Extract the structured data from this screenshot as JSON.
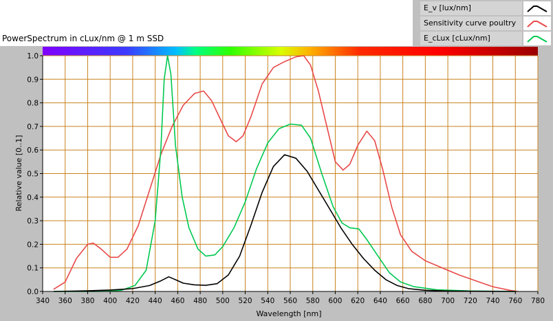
{
  "chart_data": {
    "type": "line",
    "title": "PowerSpectrum in cLux/nm @ 1 m SSD",
    "xlabel": "Wavelength [nm]",
    "ylabel": "Relative value [0..1]",
    "xlim": [
      340,
      780
    ],
    "ylim": [
      0,
      1
    ],
    "xticks": [
      "340",
      "360",
      "380",
      "400",
      "420",
      "440",
      "460",
      "480",
      "500",
      "520",
      "540",
      "560",
      "580",
      "600",
      "620",
      "640",
      "660",
      "680",
      "700",
      "720",
      "740",
      "760",
      "780"
    ],
    "yticks": [
      "0.0",
      "0.1",
      "0.2",
      "0.3",
      "0.4",
      "0.5",
      "0.6",
      "0.7",
      "0.8",
      "0.9",
      "1.0"
    ],
    "grid": true,
    "legend_position": "top-right",
    "series": [
      {
        "name": "E_v [lux/nm]",
        "color": "#000000",
        "points": [
          [
            350,
            0.0
          ],
          [
            380,
            0.003
          ],
          [
            400,
            0.006
          ],
          [
            420,
            0.012
          ],
          [
            435,
            0.025
          ],
          [
            445,
            0.045
          ],
          [
            452,
            0.062
          ],
          [
            458,
            0.05
          ],
          [
            465,
            0.035
          ],
          [
            475,
            0.028
          ],
          [
            485,
            0.026
          ],
          [
            495,
            0.033
          ],
          [
            505,
            0.07
          ],
          [
            515,
            0.15
          ],
          [
            525,
            0.28
          ],
          [
            535,
            0.42
          ],
          [
            545,
            0.53
          ],
          [
            555,
            0.58
          ],
          [
            565,
            0.565
          ],
          [
            575,
            0.51
          ],
          [
            585,
            0.43
          ],
          [
            595,
            0.35
          ],
          [
            605,
            0.27
          ],
          [
            615,
            0.2
          ],
          [
            625,
            0.14
          ],
          [
            635,
            0.09
          ],
          [
            645,
            0.05
          ],
          [
            655,
            0.025
          ],
          [
            665,
            0.012
          ],
          [
            680,
            0.005
          ],
          [
            700,
            0.002
          ],
          [
            720,
            0.001
          ],
          [
            760,
            0.0
          ]
        ]
      },
      {
        "name": "Sensitivity curve poultry",
        "color": "#e84848",
        "points": [
          [
            350,
            0.01
          ],
          [
            360,
            0.04
          ],
          [
            370,
            0.14
          ],
          [
            380,
            0.2
          ],
          [
            385,
            0.205
          ],
          [
            392,
            0.18
          ],
          [
            400,
            0.145
          ],
          [
            407,
            0.145
          ],
          [
            415,
            0.18
          ],
          [
            425,
            0.28
          ],
          [
            435,
            0.43
          ],
          [
            445,
            0.58
          ],
          [
            455,
            0.7
          ],
          [
            465,
            0.79
          ],
          [
            475,
            0.84
          ],
          [
            483,
            0.85
          ],
          [
            490,
            0.81
          ],
          [
            498,
            0.73
          ],
          [
            505,
            0.66
          ],
          [
            512,
            0.635
          ],
          [
            518,
            0.66
          ],
          [
            525,
            0.74
          ],
          [
            535,
            0.88
          ],
          [
            545,
            0.95
          ],
          [
            555,
            0.975
          ],
          [
            565,
            0.995
          ],
          [
            572,
            1.0
          ],
          [
            578,
            0.96
          ],
          [
            585,
            0.85
          ],
          [
            593,
            0.69
          ],
          [
            600,
            0.55
          ],
          [
            607,
            0.515
          ],
          [
            613,
            0.54
          ],
          [
            620,
            0.62
          ],
          [
            628,
            0.68
          ],
          [
            635,
            0.64
          ],
          [
            642,
            0.52
          ],
          [
            650,
            0.36
          ],
          [
            658,
            0.24
          ],
          [
            668,
            0.17
          ],
          [
            680,
            0.13
          ],
          [
            695,
            0.1
          ],
          [
            710,
            0.07
          ],
          [
            725,
            0.045
          ],
          [
            740,
            0.02
          ],
          [
            755,
            0.005
          ],
          [
            762,
            0.0
          ]
        ]
      },
      {
        "name": "E_cLux [cLux/nm]",
        "color": "#00c850",
        "points": [
          [
            350,
            0.0
          ],
          [
            390,
            0.0
          ],
          [
            410,
            0.005
          ],
          [
            422,
            0.025
          ],
          [
            432,
            0.09
          ],
          [
            440,
            0.3
          ],
          [
            445,
            0.6
          ],
          [
            448,
            0.9
          ],
          [
            451,
            1.0
          ],
          [
            454,
            0.92
          ],
          [
            458,
            0.62
          ],
          [
            464,
            0.4
          ],
          [
            470,
            0.27
          ],
          [
            478,
            0.18
          ],
          [
            485,
            0.15
          ],
          [
            493,
            0.155
          ],
          [
            500,
            0.19
          ],
          [
            510,
            0.27
          ],
          [
            520,
            0.38
          ],
          [
            530,
            0.52
          ],
          [
            540,
            0.63
          ],
          [
            550,
            0.69
          ],
          [
            560,
            0.71
          ],
          [
            570,
            0.705
          ],
          [
            578,
            0.65
          ],
          [
            588,
            0.5
          ],
          [
            598,
            0.36
          ],
          [
            606,
            0.29
          ],
          [
            613,
            0.27
          ],
          [
            621,
            0.265
          ],
          [
            628,
            0.22
          ],
          [
            638,
            0.15
          ],
          [
            648,
            0.08
          ],
          [
            658,
            0.04
          ],
          [
            670,
            0.02
          ],
          [
            690,
            0.007
          ],
          [
            720,
            0.002
          ],
          [
            760,
            0.0
          ]
        ]
      }
    ]
  }
}
